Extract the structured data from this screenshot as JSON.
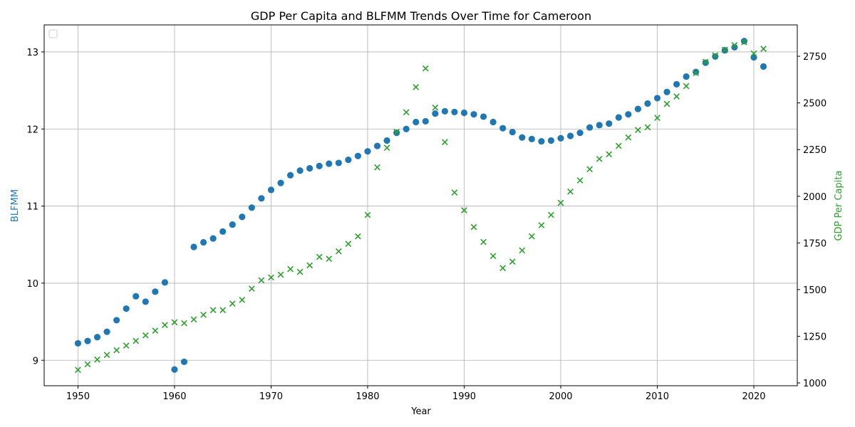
{
  "chart_data": {
    "type": "scatter",
    "title": "GDP Per Capita and BLFMM Trends Over Time for Cameroon",
    "xlabel": "Year",
    "ylabel_left": "BLFMM",
    "ylabel_right": "GDP Per Capita",
    "xlim": [
      1946.5,
      2024.5
    ],
    "ylim_left": [
      8.67,
      13.35
    ],
    "ylim_right": [
      985,
      2918
    ],
    "xticks": [
      1950,
      1960,
      1970,
      1980,
      1990,
      2000,
      2010,
      2020
    ],
    "yticks_left": [
      9,
      10,
      11,
      12,
      13
    ],
    "yticks_right": [
      1000,
      1250,
      1500,
      1750,
      2000,
      2250,
      2500,
      2750
    ],
    "grid": true,
    "legend": "top-left (empty)",
    "colors": {
      "BLFMM": "#1f77b4",
      "GDP Per Capita": "#2ca02c"
    },
    "series": [
      {
        "name": "BLFMM",
        "axis": "left",
        "marker": "circle",
        "x": [
          1950,
          1951,
          1952,
          1953,
          1954,
          1955,
          1956,
          1957,
          1958,
          1959,
          1960,
          1961,
          1962,
          1963,
          1964,
          1965,
          1966,
          1967,
          1968,
          1969,
          1970,
          1971,
          1972,
          1973,
          1974,
          1975,
          1976,
          1977,
          1978,
          1979,
          1980,
          1981,
          1982,
          1983,
          1984,
          1985,
          1986,
          1987,
          1988,
          1989,
          1990,
          1991,
          1992,
          1993,
          1994,
          1995,
          1996,
          1997,
          1998,
          1999,
          2000,
          2001,
          2002,
          2003,
          2004,
          2005,
          2006,
          2007,
          2008,
          2009,
          2010,
          2011,
          2012,
          2013,
          2014,
          2015,
          2016,
          2017,
          2018,
          2019,
          2020,
          2021
        ],
        "y": [
          9.22,
          9.25,
          9.3,
          9.37,
          9.52,
          9.67,
          9.83,
          9.76,
          9.89,
          10.01,
          8.88,
          8.98,
          10.47,
          10.53,
          10.58,
          10.67,
          10.76,
          10.86,
          10.98,
          11.1,
          11.21,
          11.3,
          11.4,
          11.46,
          11.49,
          11.52,
          11.55,
          11.56,
          11.6,
          11.65,
          11.71,
          11.78,
          11.85,
          11.95,
          12.0,
          12.09,
          12.1,
          12.2,
          12.23,
          12.22,
          12.21,
          12.19,
          12.16,
          12.09,
          12.01,
          11.96,
          11.89,
          11.87,
          11.84,
          11.85,
          11.88,
          11.91,
          11.95,
          12.02,
          12.05,
          12.07,
          12.15,
          12.19,
          12.26,
          12.33,
          12.4,
          12.48,
          12.58,
          12.68,
          12.74,
          12.86,
          12.94,
          13.02,
          13.06,
          13.14,
          12.93,
          12.81
        ]
      },
      {
        "name": "GDP Per Capita",
        "axis": "right",
        "marker": "x",
        "x": [
          1950,
          1951,
          1952,
          1953,
          1954,
          1955,
          1956,
          1957,
          1958,
          1959,
          1960,
          1961,
          1962,
          1963,
          1964,
          1965,
          1966,
          1967,
          1968,
          1969,
          1970,
          1971,
          1972,
          1973,
          1974,
          1975,
          1976,
          1977,
          1978,
          1979,
          1980,
          1981,
          1982,
          1983,
          1984,
          1985,
          1986,
          1987,
          1988,
          1989,
          1990,
          1991,
          1992,
          1993,
          1994,
          1995,
          1996,
          1997,
          1998,
          1999,
          2000,
          2001,
          2002,
          2003,
          2004,
          2005,
          2006,
          2007,
          2008,
          2009,
          2010,
          2011,
          2012,
          2013,
          2014,
          2015,
          2016,
          2017,
          2018,
          2019,
          2020,
          2021
        ],
        "y": [
          1070,
          1100,
          1125,
          1150,
          1175,
          1200,
          1225,
          1255,
          1280,
          1310,
          1325,
          1320,
          1340,
          1365,
          1390,
          1390,
          1425,
          1445,
          1505,
          1550,
          1565,
          1580,
          1610,
          1595,
          1630,
          1675,
          1665,
          1705,
          1745,
          1785,
          1900,
          2155,
          2260,
          2345,
          2450,
          2585,
          2685,
          2475,
          2290,
          2020,
          1925,
          1835,
          1755,
          1680,
          1615,
          1650,
          1710,
          1785,
          1845,
          1900,
          1965,
          2025,
          2085,
          2145,
          2200,
          2225,
          2270,
          2315,
          2355,
          2370,
          2420,
          2495,
          2535,
          2590,
          2660,
          2720,
          2755,
          2785,
          2810,
          2825,
          2765,
          2790
        ]
      }
    ]
  }
}
